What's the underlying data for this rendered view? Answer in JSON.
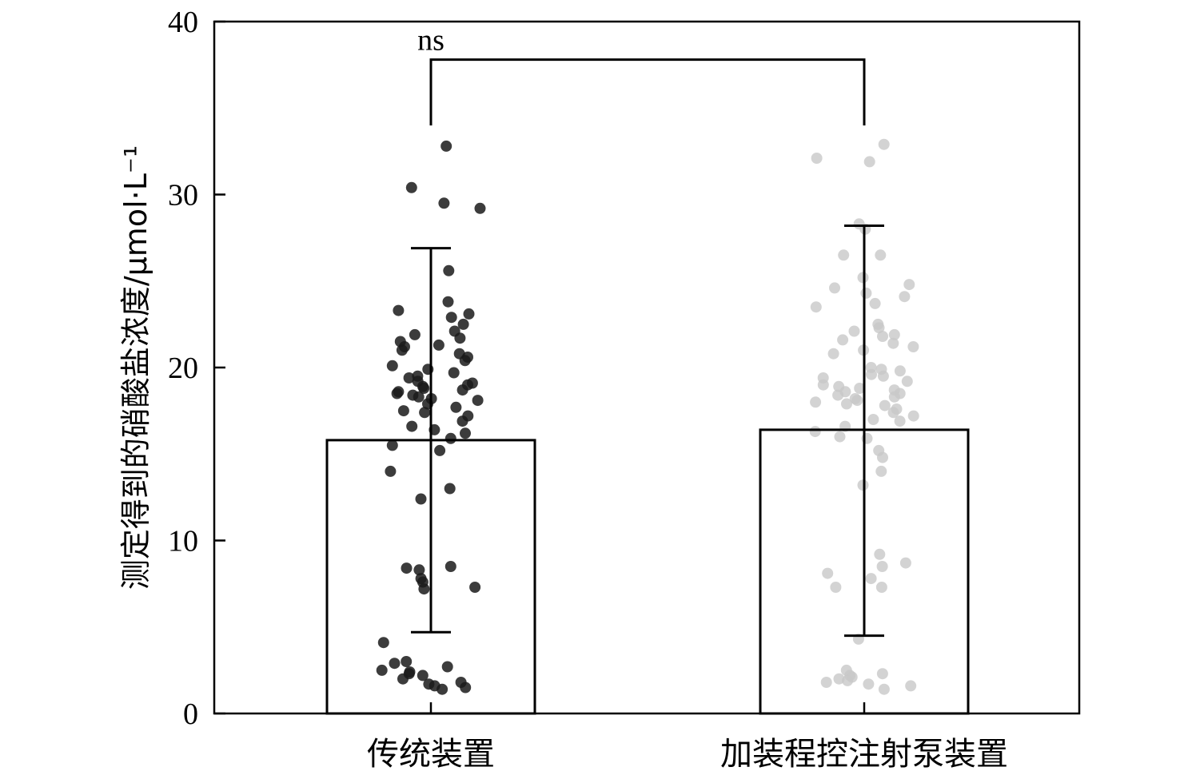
{
  "chart_data": {
    "type": "bar",
    "title": "",
    "xlabel": "",
    "ylabel": "测定得到的硝酸盐浓度/μmol·L⁻¹",
    "ylim": [
      0,
      40
    ],
    "yticks": [
      0,
      10,
      20,
      30,
      40
    ],
    "grid": false,
    "categories": [
      "传统装置",
      "加装程控注射泵装置"
    ],
    "values": [
      15.8,
      16.4
    ],
    "error_low": [
      4.7,
      4.5
    ],
    "error_high": [
      26.9,
      28.2
    ],
    "significance": {
      "label": "ns",
      "y": 37.8
    },
    "point_colors": [
      "#1a1a1a",
      "#c8c8c8"
    ],
    "points": [
      [
        32.8,
        30.4,
        29.5,
        29.2,
        25.6,
        23.8,
        23.3,
        23.1,
        22.9,
        22.5,
        22.1,
        21.9,
        21.7,
        21.5,
        21.3,
        21.2,
        21.0,
        20.8,
        20.6,
        20.4,
        20.1,
        19.9,
        19.7,
        19.5,
        19.4,
        19.2,
        19.1,
        19.0,
        18.9,
        18.8,
        18.7,
        18.6,
        18.5,
        18.4,
        18.3,
        18.2,
        18.1,
        17.9,
        17.7,
        17.5,
        17.4,
        17.2,
        16.9,
        16.6,
        16.4,
        16.2,
        15.9,
        15.5,
        15.2,
        14.0,
        13.0,
        12.4,
        8.5,
        8.4,
        8.3,
        7.8,
        7.6,
        7.3,
        7.2,
        4.1,
        3.0,
        2.9,
        2.7,
        2.5,
        2.4,
        2.3,
        2.2,
        2.0,
        1.8,
        1.7,
        1.6,
        1.5,
        1.4
      ],
      [
        32.9,
        32.1,
        31.9,
        28.3,
        28.0,
        26.5,
        26.5,
        25.2,
        24.8,
        24.6,
        24.3,
        24.1,
        23.7,
        23.5,
        22.5,
        22.3,
        22.1,
        21.9,
        21.8,
        21.6,
        21.4,
        21.2,
        21.0,
        20.8,
        20.0,
        19.9,
        19.8,
        19.6,
        19.5,
        19.4,
        19.2,
        19.0,
        18.9,
        18.8,
        18.7,
        18.6,
        18.5,
        18.4,
        18.3,
        18.2,
        18.1,
        18.0,
        17.9,
        17.8,
        17.6,
        17.4,
        17.2,
        17.0,
        16.9,
        16.6,
        16.3,
        16.0,
        15.9,
        15.2,
        14.8,
        14.0,
        13.2,
        9.2,
        8.7,
        8.5,
        8.1,
        7.8,
        7.3,
        7.3,
        4.3,
        2.5,
        2.3,
        2.2,
        2.1,
        2.0,
        1.9,
        1.8,
        1.7,
        1.6,
        1.4
      ]
    ]
  }
}
